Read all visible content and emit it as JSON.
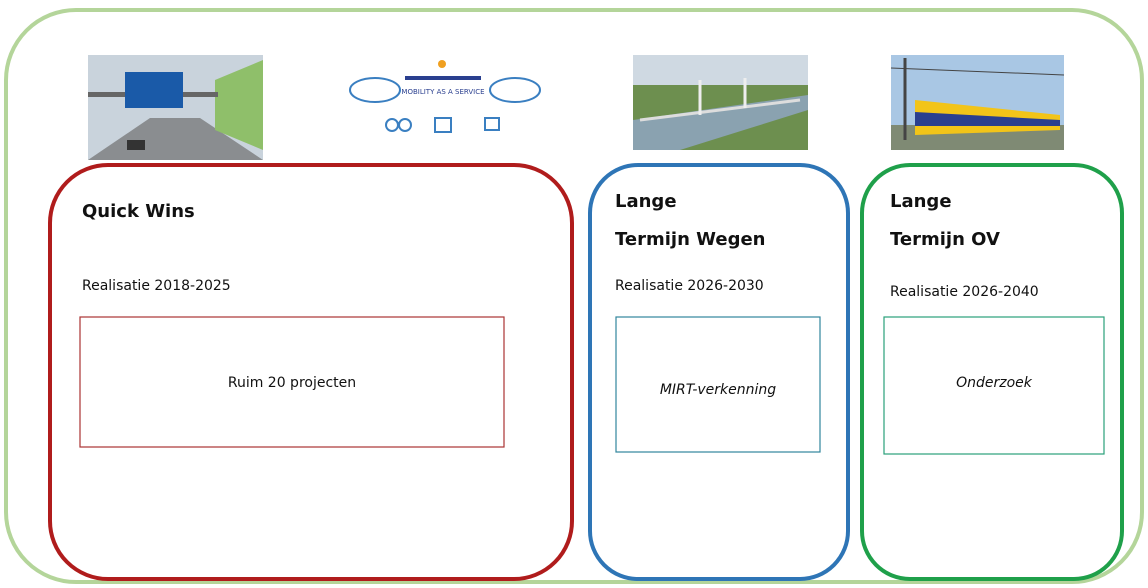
{
  "icon_label": "MOBILITY AS A SERVICE",
  "panels": [
    {
      "title": [
        "Quick Wins"
      ],
      "subtitle": "Realisatie 2018-2025",
      "box_text": "Ruim 20 projecten"
    },
    {
      "title": [
        "Lange",
        "Termijn Wegen"
      ],
      "subtitle": "Realisatie 2026-2030",
      "box_text": "MIRT-verkenning"
    },
    {
      "title": [
        "Lange",
        "Termijn OV"
      ],
      "subtitle": "Realisatie 2026-2040",
      "box_text": "Onderzoek"
    }
  ]
}
